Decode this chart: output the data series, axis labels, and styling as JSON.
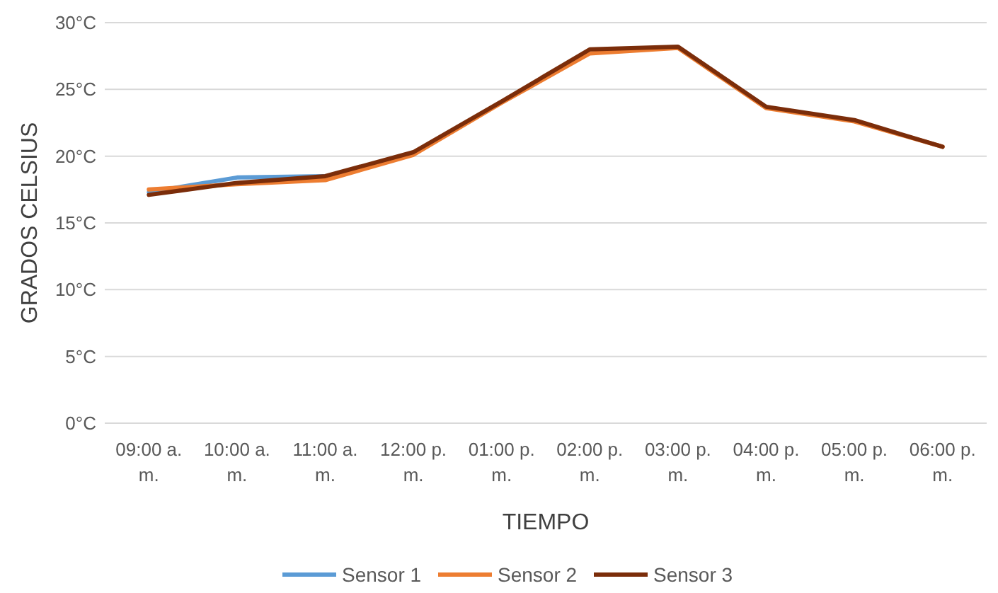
{
  "chart_data": {
    "type": "line",
    "xlabel": "TIEMPO",
    "ylabel": "GRADOS CELSIUS",
    "categories": [
      "09:00 a. m.",
      "10:00 a. m.",
      "11:00 a. m.",
      "12:00 p. m.",
      "01:00 p. m.",
      "02:00 p. m.",
      "03:00 p. m.",
      "04:00 p. m.",
      "05:00 p. m.",
      "06:00 p. m."
    ],
    "series": [
      {
        "name": "Sensor 1",
        "color": "#5b9bd5",
        "values": [
          17.3,
          18.4,
          18.5,
          null,
          null,
          null,
          null,
          null,
          null,
          null
        ]
      },
      {
        "name": "Sensor 2",
        "color": "#ed7d31",
        "values": [
          17.5,
          17.9,
          18.2,
          20.1,
          24.0,
          27.7,
          28.1,
          23.6,
          22.6,
          20.7
        ]
      },
      {
        "name": "Sensor 3",
        "color": "#7b2d0a",
        "values": [
          17.1,
          18.0,
          18.5,
          20.3,
          24.1,
          28.0,
          28.2,
          23.7,
          22.7,
          20.7
        ]
      }
    ],
    "ylim": [
      0,
      30
    ],
    "yticks": [
      {
        "value": 0,
        "label": "0°C"
      },
      {
        "value": 5,
        "label": "5°C"
      },
      {
        "value": 10,
        "label": "10°C"
      },
      {
        "value": 15,
        "label": "15°C"
      },
      {
        "value": 20,
        "label": "20°C"
      },
      {
        "value": 25,
        "label": "25°C"
      },
      {
        "value": 30,
        "label": "30°C"
      }
    ],
    "grid": "y",
    "legend": "bottom",
    "line_style": "solid"
  }
}
